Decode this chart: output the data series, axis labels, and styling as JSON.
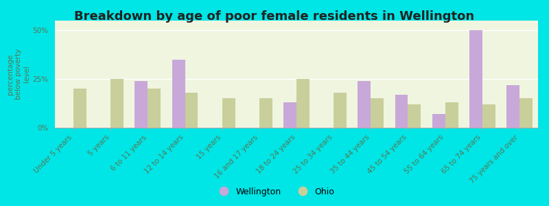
{
  "title": "Breakdown by age of poor female residents in Wellington",
  "ylabel": "percentage\nbelow poverty\nlevel",
  "categories": [
    "Under 5 years",
    "5 years",
    "6 to 11 years",
    "12 to 14 years",
    "15 years",
    "16 and 17 years",
    "18 to 24 years",
    "25 to 34 years",
    "35 to 44 years",
    "45 to 54 years",
    "55 to 64 years",
    "65 to 74 years",
    "75 years and over"
  ],
  "wellington": [
    0,
    0,
    24.0,
    35.0,
    0,
    0,
    13.0,
    0,
    24.0,
    17.0,
    7.0,
    50.0,
    22.0
  ],
  "ohio": [
    20.0,
    25.0,
    20.0,
    18.0,
    15.0,
    15.0,
    25.0,
    18.0,
    15.0,
    12.0,
    13.0,
    12.0,
    15.0
  ],
  "wellington_color": "#c8a8d8",
  "ohio_color": "#c8cf9a",
  "plot_bg": "#f0f5e0",
  "fig_bg": "#00e5e5",
  "ylim": [
    0,
    55
  ],
  "yticks": [
    0,
    25,
    50
  ],
  "ytick_labels": [
    "0%",
    "25%",
    "50%"
  ],
  "bar_width": 0.35,
  "title_fontsize": 13,
  "label_fontsize": 7.5,
  "tick_fontsize": 7.5,
  "legend_fontsize": 9,
  "tick_color": "#557755",
  "title_color": "#222222"
}
